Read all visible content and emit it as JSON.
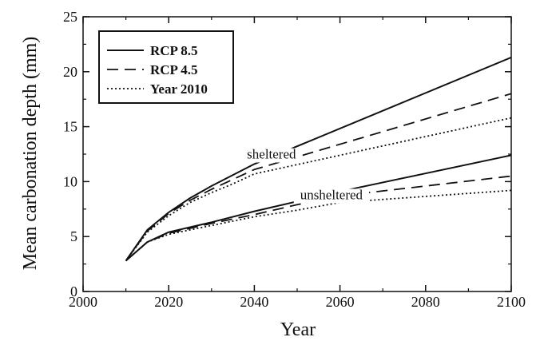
{
  "chart_data": {
    "type": "line",
    "xlabel": "Year",
    "ylabel": "Mean carbonation depth (mm)",
    "xlim": [
      2000,
      2100
    ],
    "ylim": [
      0,
      25
    ],
    "x_ticks": [
      2000,
      2020,
      2040,
      2060,
      2080,
      2100
    ],
    "y_ticks": [
      0,
      5,
      10,
      15,
      20,
      25
    ],
    "grid": false,
    "legend": {
      "placement": "top-left",
      "entries": [
        {
          "label": "RCP 8.5",
          "style": "solid"
        },
        {
          "label": "RCP 4.5",
          "style": "dashed"
        },
        {
          "label": "Year 2010",
          "style": "dotted"
        }
      ]
    },
    "annotations": [
      {
        "text": "sheltered",
        "x": 2044,
        "y": 12.1
      },
      {
        "text": "unsheltered",
        "x": 2058,
        "y": 8.4
      }
    ],
    "series": [
      {
        "name": "RCP 8.5",
        "group": "sheltered",
        "style": "solid",
        "x": [
          2010,
          2015,
          2020,
          2025,
          2030,
          2035,
          2040,
          2100
        ],
        "y": [
          2.8,
          5.6,
          7.2,
          8.5,
          9.6,
          10.6,
          11.6,
          21.3
        ]
      },
      {
        "name": "RCP 4.5",
        "group": "sheltered",
        "style": "dashed",
        "x": [
          2010,
          2015,
          2020,
          2025,
          2030,
          2035,
          2040,
          2100
        ],
        "y": [
          2.8,
          5.5,
          7.1,
          8.3,
          9.3,
          10.2,
          11.1,
          18.0
        ]
      },
      {
        "name": "Year 2010",
        "group": "sheltered",
        "style": "dotted",
        "x": [
          2010,
          2015,
          2020,
          2025,
          2030,
          2035,
          2040,
          2100
        ],
        "y": [
          2.8,
          5.4,
          6.9,
          8.1,
          9.0,
          9.8,
          10.7,
          15.8
        ]
      },
      {
        "name": "RCP 8.5",
        "group": "unsheltered",
        "style": "solid",
        "x": [
          2010,
          2015,
          2020,
          2030,
          2040,
          2050,
          2060,
          2100
        ],
        "y": [
          2.8,
          4.5,
          5.4,
          6.3,
          7.3,
          8.2,
          9.1,
          12.4
        ]
      },
      {
        "name": "RCP 4.5",
        "group": "unsheltered",
        "style": "dashed",
        "x": [
          2010,
          2015,
          2020,
          2030,
          2040,
          2050,
          2060,
          2100
        ],
        "y": [
          2.8,
          4.5,
          5.3,
          6.2,
          7.0,
          7.9,
          8.7,
          10.5
        ]
      },
      {
        "name": "Year 2010",
        "group": "unsheltered",
        "style": "dotted",
        "x": [
          2010,
          2015,
          2020,
          2030,
          2040,
          2050,
          2060,
          2100
        ],
        "y": [
          2.8,
          4.5,
          5.2,
          6.0,
          6.8,
          7.4,
          8.1,
          9.2
        ]
      }
    ]
  }
}
